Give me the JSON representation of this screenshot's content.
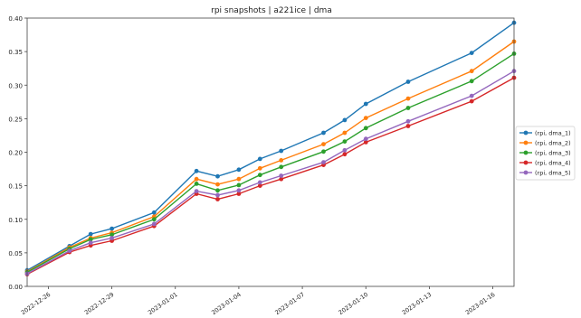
{
  "chart_data": {
    "type": "line",
    "title": "rpi snapshots | a221ice | dma",
    "xlabel": "",
    "ylabel": "",
    "x_dates": [
      "2022-12-25",
      "2022-12-27",
      "2022-12-28",
      "2022-12-29",
      "2022-12-31",
      "2023-01-02",
      "2023-01-03",
      "2023-01-04",
      "2023-01-05",
      "2023-01-06",
      "2023-01-08",
      "2023-01-09",
      "2023-01-10",
      "2023-01-12",
      "2023-01-15",
      "2023-01-17"
    ],
    "x_tick_labels": [
      "2022-12-26",
      "2022-12-29",
      "2023-01-01",
      "2023-01-04",
      "2023-01-07",
      "2023-01-10",
      "2023-01-13",
      "2023-01-16"
    ],
    "ylim": [
      0.0,
      0.4
    ],
    "y_ticks": [
      0.0,
      0.05,
      0.1,
      0.15,
      0.2,
      0.25,
      0.3,
      0.35,
      0.4
    ],
    "y_tick_labels": [
      "0.00",
      "0.05",
      "0.10",
      "0.15",
      "0.20",
      "0.25",
      "0.30",
      "0.35",
      "0.40"
    ],
    "grid": false,
    "legend_position": "right, outside plot",
    "series": [
      {
        "name": "(rpi, dma_1)",
        "color": "#1f77b4",
        "values": [
          0.024,
          0.06,
          0.078,
          0.086,
          0.11,
          0.172,
          0.164,
          0.174,
          0.19,
          0.202,
          0.229,
          0.248,
          0.272,
          0.305,
          0.348,
          0.393
        ]
      },
      {
        "name": "(rpi, dma_2)",
        "color": "#ff7f0e",
        "values": [
          0.022,
          0.058,
          0.072,
          0.08,
          0.104,
          0.16,
          0.152,
          0.16,
          0.176,
          0.188,
          0.212,
          0.229,
          0.251,
          0.28,
          0.321,
          0.365
        ]
      },
      {
        "name": "(rpi, dma_3)",
        "color": "#2ca02c",
        "values": [
          0.021,
          0.056,
          0.07,
          0.077,
          0.1,
          0.153,
          0.143,
          0.151,
          0.166,
          0.178,
          0.201,
          0.216,
          0.236,
          0.266,
          0.306,
          0.347
        ]
      },
      {
        "name": "(rpi, dma_4)",
        "color": "#d62728",
        "values": [
          0.018,
          0.051,
          0.061,
          0.068,
          0.09,
          0.138,
          0.13,
          0.138,
          0.15,
          0.16,
          0.181,
          0.197,
          0.215,
          0.239,
          0.276,
          0.311
        ]
      },
      {
        "name": "(rpi, dma_5)",
        "color": "#9467bd",
        "values": [
          0.019,
          0.053,
          0.065,
          0.072,
          0.093,
          0.142,
          0.136,
          0.143,
          0.155,
          0.165,
          0.185,
          0.203,
          0.22,
          0.246,
          0.284,
          0.321
        ]
      }
    ]
  }
}
